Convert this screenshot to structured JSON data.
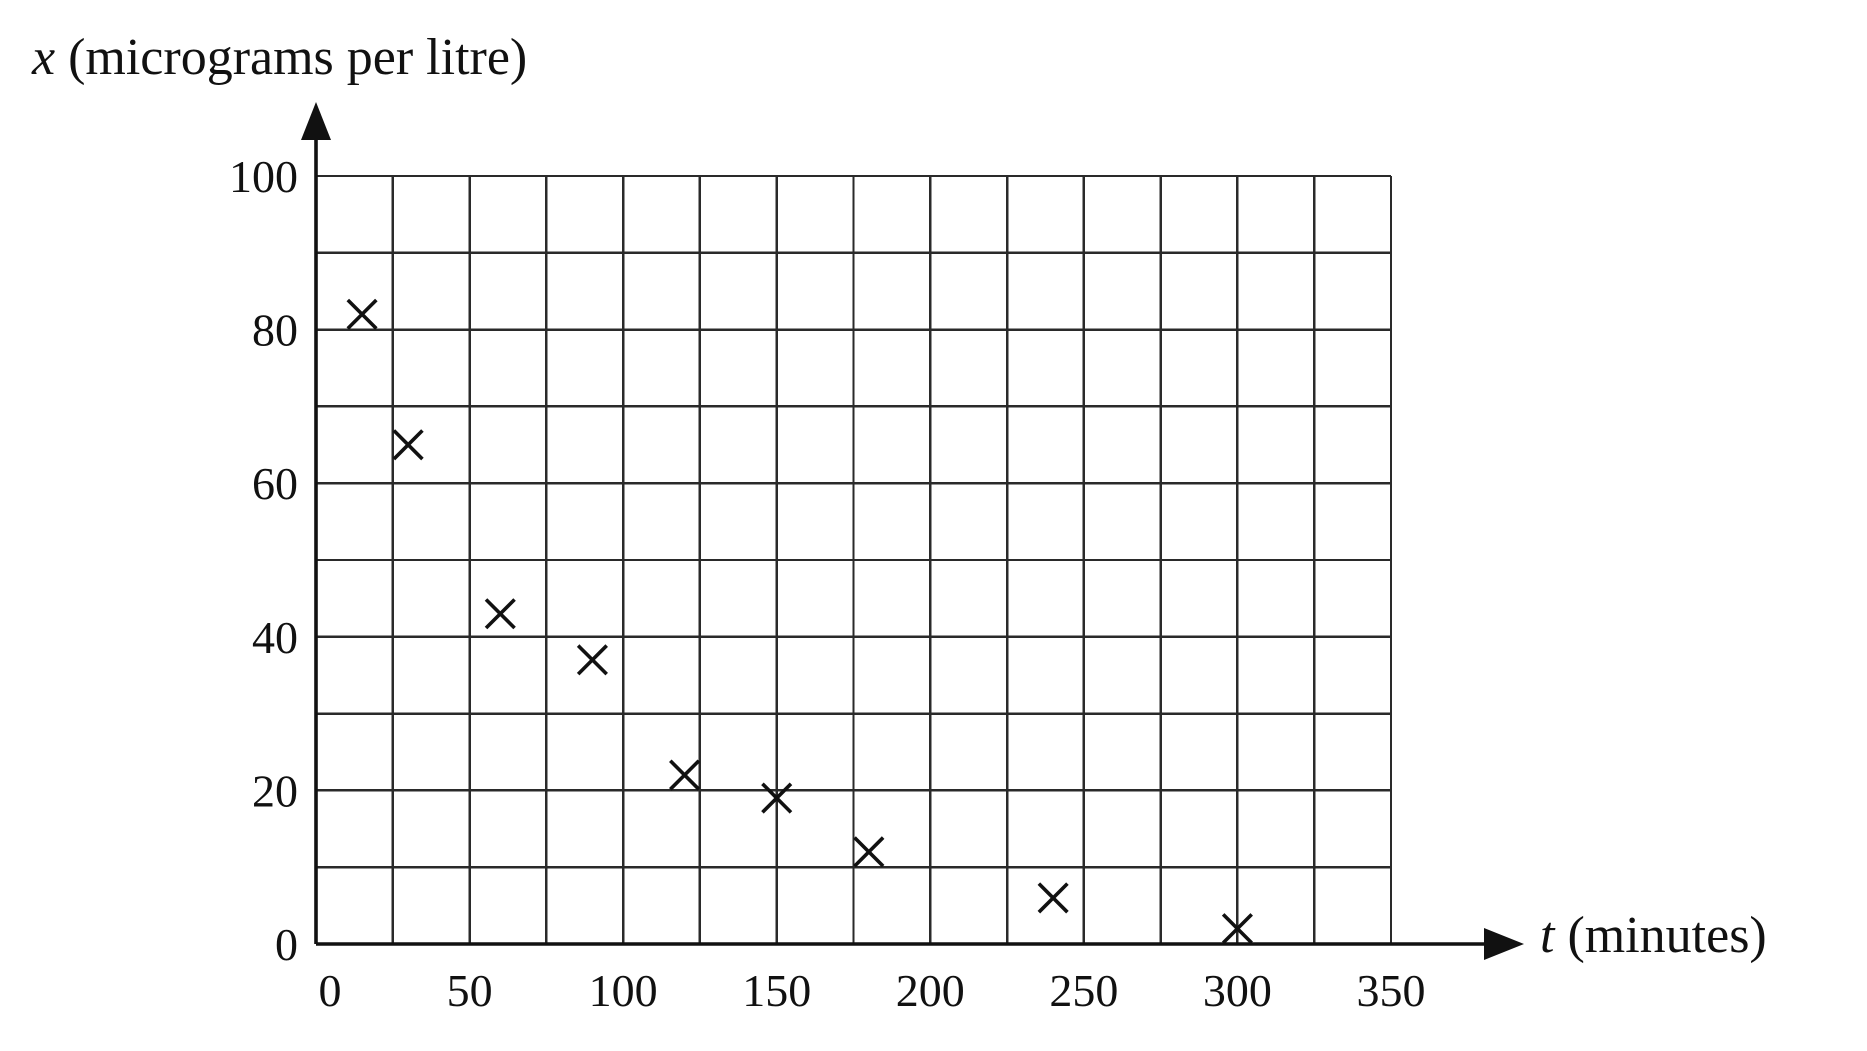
{
  "chart_data": {
    "type": "scatter",
    "title": "",
    "xlabel": {
      "var": "t",
      "unit": " (minutes)"
    },
    "ylabel": {
      "var": "x",
      "unit": " (micrograms per litre)"
    },
    "xlim": [
      0,
      350
    ],
    "ylim": [
      0,
      100
    ],
    "x_ticks": [
      0,
      50,
      100,
      150,
      200,
      250,
      300,
      350
    ],
    "y_ticks": [
      0,
      20,
      40,
      60,
      80,
      100
    ],
    "grid": {
      "x_step": 25,
      "y_step": 10,
      "enabled": true
    },
    "marker": "x",
    "points": [
      {
        "x": 15,
        "y": 82
      },
      {
        "x": 30,
        "y": 65
      },
      {
        "x": 60,
        "y": 43
      },
      {
        "x": 90,
        "y": 37
      },
      {
        "x": 120,
        "y": 22
      },
      {
        "x": 150,
        "y": 19
      },
      {
        "x": 180,
        "y": 12
      },
      {
        "x": 240,
        "y": 6
      },
      {
        "x": 300,
        "y": 2
      }
    ]
  },
  "colors": {
    "ink": "#111111",
    "grid": "#2a2a2a",
    "background": "#ffffff"
  }
}
